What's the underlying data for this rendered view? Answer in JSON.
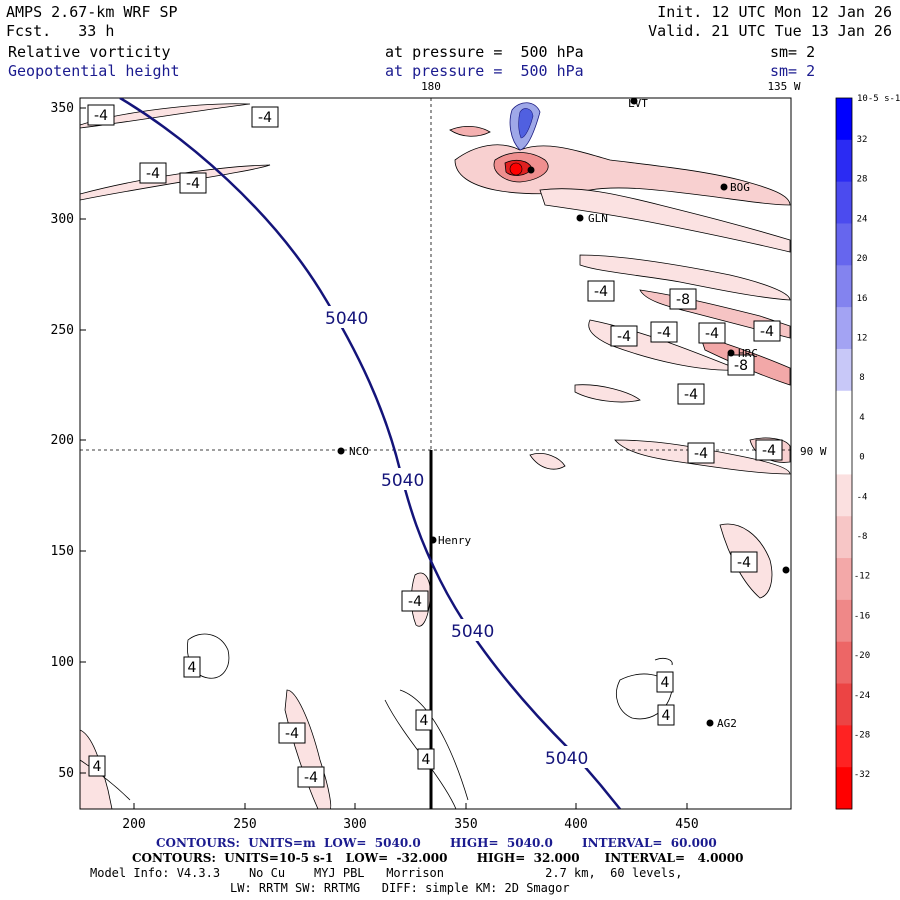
{
  "header": {
    "line1_left": "AMPS 2.67-km WRF SP",
    "line2_left": "Fcst.   33 h",
    "line1_right": "Init. 12 UTC Mon 12 Jan 26",
    "line2_right": "Valid. 21 UTC Tue 13 Jan 26",
    "field1_name": "Relative vorticity",
    "field1_level": "at pressure =  500 hPa",
    "field1_sm": "sm= 2",
    "field2_name": "Geopotential height",
    "field2_level": "at pressure =  500 hPa",
    "field2_sm": "sm= 2"
  },
  "map": {
    "x_ticks": [
      "200",
      "250",
      "300",
      "350",
      "400",
      "450"
    ],
    "y_ticks": [
      "350",
      "300",
      "250",
      "200",
      "150",
      "100",
      "50"
    ],
    "meridian_labels": {
      "top_180": "180",
      "top_135w": "135 W",
      "right_90w": "90 W"
    },
    "stations": [
      {
        "name": "LVT"
      },
      {
        "name": "BOG"
      },
      {
        "name": "GLN"
      },
      {
        "name": "HRC"
      },
      {
        "name": "NCO"
      },
      {
        "name": "Henry"
      },
      {
        "name": "AG2"
      }
    ],
    "height_contour_labels": [
      "5040",
      "5040",
      "5040",
      "5040"
    ],
    "vort_labels": [
      "-4",
      "-4",
      "-4",
      "-4",
      "-4",
      "-8",
      "-4",
      "-4",
      "-4",
      "-8",
      "-4",
      "-4",
      "-4",
      "-4",
      "-4",
      "-4",
      "4",
      "4",
      "4",
      "4",
      "4",
      "-4",
      "-4",
      "4"
    ]
  },
  "colorbar": {
    "unit_label": "10-5 s-1",
    "ticks": [
      "32",
      "28",
      "24",
      "20",
      "16",
      "12",
      "8",
      "4",
      "0",
      "-4",
      "-8",
      "-12",
      "-16",
      "-20",
      "-24",
      "-28",
      "-32"
    ],
    "colors": [
      "#0000ff",
      "#2b2bf3",
      "#4b4bef",
      "#6666ee",
      "#8383ef",
      "#a3a3f3",
      "#c8c8f8",
      "#ffffff",
      "#ffffff",
      "#fbe0e0",
      "#f7c6c6",
      "#f3a8a8",
      "#ef8888",
      "#ed6666",
      "#ec4444",
      "#ff2222",
      "#ff0000"
    ]
  },
  "footer": {
    "line1": "CONTOURS:  UNITS=m  LOW=  5040.0       HIGH=  5040.0       INTERVAL=  60.000",
    "line2": "CONTOURS:  UNITS=10-5 s-1   LOW=  -32.000       HIGH=  32.000      INTERVAL=   4.0000",
    "line3": "Model Info: V4.3.3    No Cu    MYJ PBL   Morrison              2.7 km,  60 levels,",
    "line4": "LW: RRTM SW: RRTMG   DIFF: simple KM: 2D Smagor"
  }
}
